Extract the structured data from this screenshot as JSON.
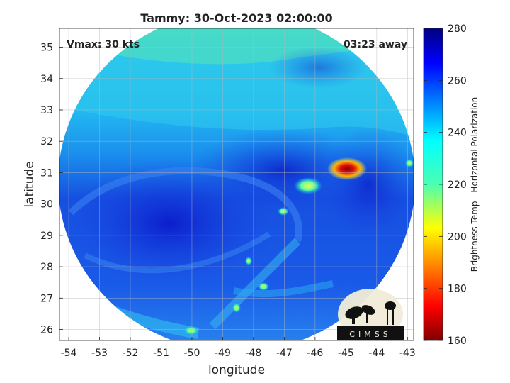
{
  "title": "Tammy: 30-Oct-2023 02:00:00",
  "vmax_label": "Vmax: 30 kts",
  "time_away": "03:23 away",
  "xaxis": {
    "label": "longitude",
    "ticks": [
      "-54",
      "-53",
      "-52",
      "-51",
      "-50",
      "-49",
      "-48",
      "-47",
      "-46",
      "-45",
      "-44",
      "-43"
    ],
    "range": [
      -54.3,
      -42.8
    ]
  },
  "yaxis": {
    "label": "latitude",
    "ticks": [
      "26",
      "27",
      "28",
      "29",
      "30",
      "31",
      "32",
      "33",
      "34",
      "35"
    ],
    "range": [
      25.65,
      35.6
    ]
  },
  "colorbar": {
    "label": "Brightness Temp - Horizontal Polarization",
    "ticks": [
      "280",
      "260",
      "240",
      "220",
      "200",
      "180",
      "160"
    ],
    "range": [
      160,
      280
    ],
    "colormap": "jet"
  },
  "logo": {
    "text": "CIMSS"
  },
  "chart_data": {
    "type": "heatmap",
    "title": "Tammy: 30-Oct-2023 02:00:00",
    "xlabel": "longitude",
    "ylabel": "latitude",
    "xlim": [
      -54.3,
      -42.8
    ],
    "ylim": [
      25.65,
      35.6
    ],
    "clim": [
      160,
      280
    ],
    "colorbar_label": "Brightness Temp - Horizontal Polarization",
    "grid": true,
    "annotations": [
      "Vmax: 30 kts",
      "03:23 away"
    ],
    "features": [
      {
        "description": "coldest convective core",
        "lon": -44.8,
        "lat": 31.1,
        "value": 168
      },
      {
        "description": "convective cell",
        "lon": -45.9,
        "lat": 30.5,
        "value": 228
      },
      {
        "description": "small cell",
        "lon": -50.1,
        "lat": 25.95,
        "value": 225
      },
      {
        "description": "small cell",
        "lon": -46.8,
        "lat": 27.4,
        "value": 230
      }
    ]
  }
}
